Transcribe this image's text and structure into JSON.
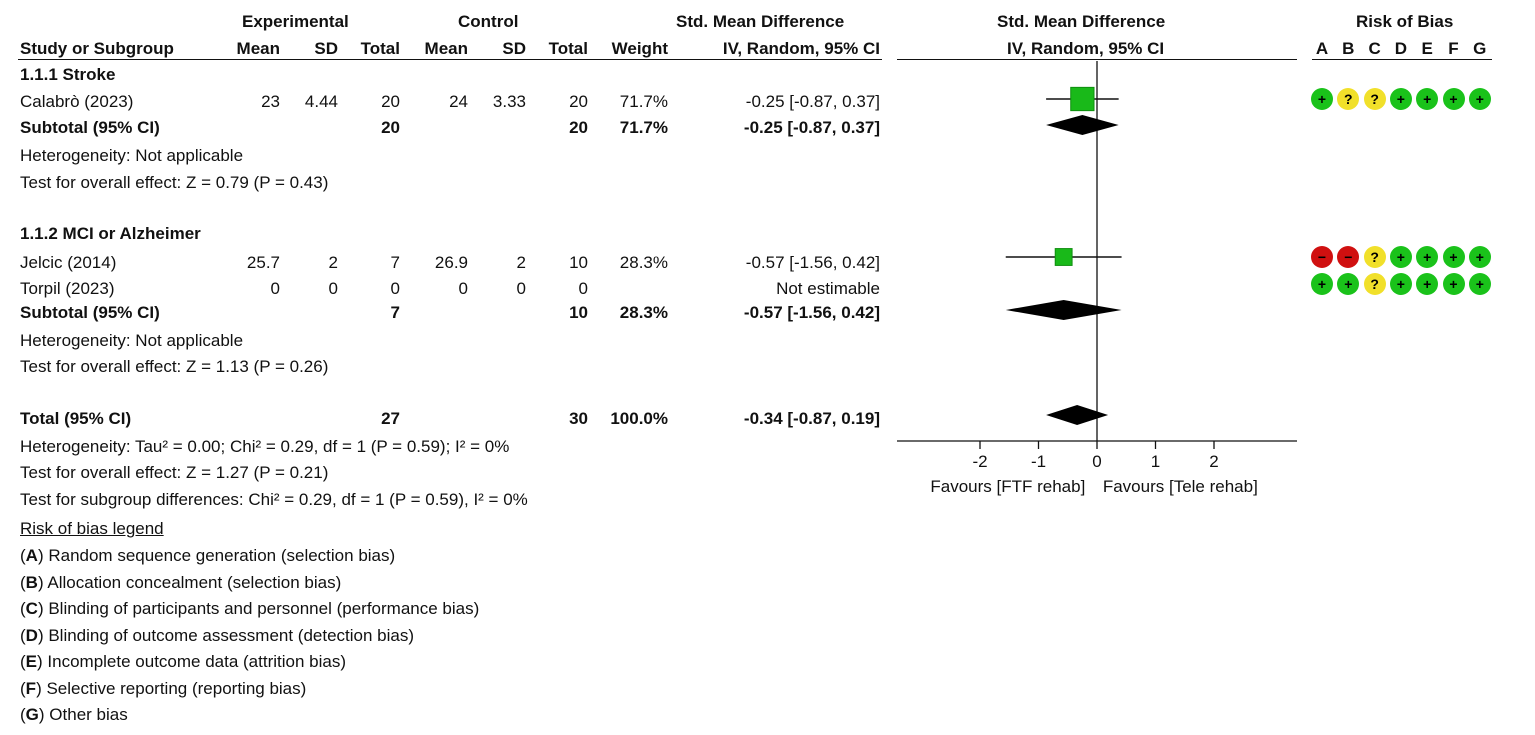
{
  "colors": {
    "green": "#1ac21a",
    "yellow": "#f1e02a",
    "red": "#d01010",
    "square": "#19b919"
  },
  "header": {
    "experimental": "Experimental",
    "control": "Control",
    "smd": "Std. Mean Difference",
    "smd_plot": "Std. Mean Difference",
    "rob": "Risk of Bias",
    "study": "Study or Subgroup",
    "mean": "Mean",
    "sd": "SD",
    "total": "Total",
    "weight": "Weight",
    "method": "IV, Random, 95% CI",
    "method_plot": "IV, Random, 95% CI",
    "rob_letters": [
      "A",
      "B",
      "C",
      "D",
      "E",
      "F",
      "G"
    ]
  },
  "groups": [
    {
      "title": "1.1.1 Stroke",
      "studies": [
        {
          "name": "Calabrò (2023)",
          "e_mean": "23",
          "e_sd": "4.44",
          "e_total": "20",
          "c_mean": "24",
          "c_sd": "3.33",
          "c_total": "20",
          "weight": "71.7%",
          "ci": "-0.25 [-0.87, 0.37]",
          "rob": [
            {
              "type": "low",
              "sym": "+"
            },
            {
              "type": "unc",
              "sym": "?"
            },
            {
              "type": "unc",
              "sym": "?"
            },
            {
              "type": "low",
              "sym": "+"
            },
            {
              "type": "low",
              "sym": "+"
            },
            {
              "type": "low",
              "sym": "+"
            },
            {
              "type": "low",
              "sym": "+"
            }
          ]
        }
      ],
      "subtotal": {
        "label": "Subtotal (95% CI)",
        "e_total": "20",
        "c_total": "20",
        "weight": "71.7%",
        "ci": "-0.25 [-0.87, 0.37]"
      },
      "heterogeneity": "Heterogeneity: Not applicable",
      "overall": "Test for overall effect: Z = 0.79 (P = 0.43)"
    },
    {
      "title": "1.1.2 MCI or Alzheimer",
      "studies": [
        {
          "name": "Jelcic (2014)",
          "e_mean": "25.7",
          "e_sd": "2",
          "e_total": "7",
          "c_mean": "26.9",
          "c_sd": "2",
          "c_total": "10",
          "weight": "28.3%",
          "ci": "-0.57 [-1.56, 0.42]",
          "rob": [
            {
              "type": "high",
              "sym": "−"
            },
            {
              "type": "high",
              "sym": "−"
            },
            {
              "type": "unc",
              "sym": "?"
            },
            {
              "type": "low",
              "sym": "+"
            },
            {
              "type": "low",
              "sym": "+"
            },
            {
              "type": "low",
              "sym": "+"
            },
            {
              "type": "low",
              "sym": "+"
            }
          ]
        },
        {
          "name": "Torpil (2023)",
          "e_mean": "0",
          "e_sd": "0",
          "e_total": "0",
          "c_mean": "0",
          "c_sd": "0",
          "c_total": "0",
          "weight": "",
          "ci": "Not estimable",
          "rob": [
            {
              "type": "low",
              "sym": "+"
            },
            {
              "type": "low",
              "sym": "+"
            },
            {
              "type": "unc",
              "sym": "?"
            },
            {
              "type": "low",
              "sym": "+"
            },
            {
              "type": "low",
              "sym": "+"
            },
            {
              "type": "low",
              "sym": "+"
            },
            {
              "type": "low",
              "sym": "+"
            }
          ]
        }
      ],
      "subtotal": {
        "label": "Subtotal (95% CI)",
        "e_total": "7",
        "c_total": "10",
        "weight": "28.3%",
        "ci": "-0.57 [-1.56, 0.42]"
      },
      "heterogeneity": "Heterogeneity: Not applicable",
      "overall": "Test for overall effect: Z = 1.13 (P = 0.26)"
    }
  ],
  "total": {
    "label": "Total (95% CI)",
    "e_total": "27",
    "c_total": "30",
    "weight": "100.0%",
    "ci": "-0.34 [-0.87, 0.19]",
    "heterogeneity": "Heterogeneity: Tau² = 0.00; Chi² = 0.29, df = 1 (P = 0.59); I² = 0%",
    "overall": "Test for overall effect: Z = 1.27 (P = 0.21)",
    "subgroup": "Test for subgroup differences: Chi² = 0.29, df = 1 (P = 0.59), I² = 0%"
  },
  "legend": {
    "title": "Risk of bias legend",
    "items": [
      {
        "key": "A",
        "text": ") Random sequence generation (selection bias)"
      },
      {
        "key": "B",
        "text": ") Allocation concealment (selection bias)"
      },
      {
        "key": "C",
        "text": ") Blinding of participants and personnel (performance bias)"
      },
      {
        "key": "D",
        "text": ") Blinding of outcome assessment (detection bias)"
      },
      {
        "key": "E",
        "text": ") Incomplete outcome data (attrition bias)"
      },
      {
        "key": "F",
        "text": ") Selective reporting (reporting bias)"
      },
      {
        "key": "G",
        "text": ") Other bias"
      }
    ]
  },
  "chart_data": {
    "type": "forest",
    "title": "Std. Mean Difference IV, Random, 95% CI",
    "xlim": [
      -3.4,
      3.4
    ],
    "xticks": [
      "-2",
      "-1",
      "0",
      "1",
      "2"
    ],
    "xtick_values": [
      -2,
      -1,
      0,
      1,
      2
    ],
    "favours_left": "Favours [FTF rehab]",
    "favours_right": "Favours [Tele rehab]",
    "studies": [
      {
        "name": "Calabrò (2023)",
        "est": -0.25,
        "lo": -0.87,
        "hi": 0.37,
        "weight": 71.7
      },
      {
        "name": "Jelcic (2014)",
        "est": -0.57,
        "lo": -1.56,
        "hi": 0.42,
        "weight": 28.3
      }
    ],
    "diamonds": [
      {
        "name": "Subtotal 1.1.1",
        "est": -0.25,
        "lo": -0.87,
        "hi": 0.37
      },
      {
        "name": "Subtotal 1.1.2",
        "est": -0.57,
        "lo": -1.56,
        "hi": 0.42
      },
      {
        "name": "Total",
        "est": -0.34,
        "lo": -0.87,
        "hi": 0.19
      }
    ]
  }
}
